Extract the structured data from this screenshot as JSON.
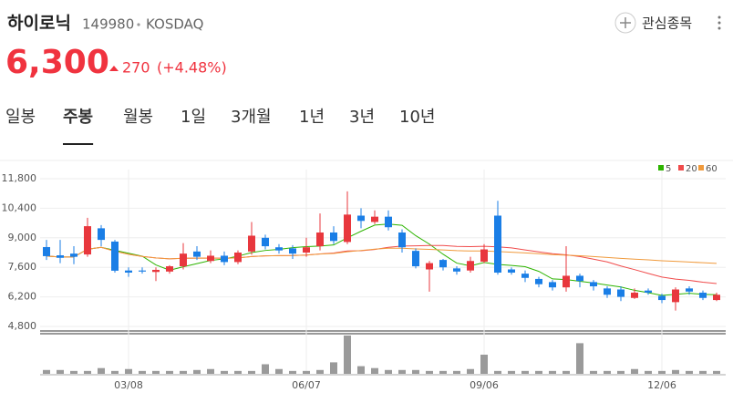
{
  "header": {
    "name": "하이로닉",
    "code": "149980",
    "market": "KOSDAQ",
    "watch": "관심종목",
    "price": "6,300",
    "change": "270",
    "change_pct": "(+4.48%)"
  },
  "tabs": [
    "일봉",
    "주봉",
    "월봉",
    "1일",
    "3개월",
    "1년",
    "3년",
    "10년"
  ],
  "active_tab": 1,
  "chart_data": {
    "type": "candlestick",
    "categories": [
      null,
      null,
      null,
      null,
      null,
      null,
      "03/08",
      null,
      null,
      null,
      null,
      null,
      null,
      null,
      null,
      null,
      null,
      null,
      null,
      "06/07",
      null,
      null,
      null,
      null,
      null,
      null,
      null,
      null,
      null,
      null,
      null,
      null,
      "09/06",
      null,
      null,
      null,
      null,
      null,
      null,
      null,
      null,
      null,
      null,
      null,
      null,
      "12/06",
      null,
      null,
      null,
      null
    ],
    "open": [
      8560,
      8170,
      8250,
      8210,
      9450,
      8820,
      7450,
      7450,
      7380,
      7400,
      7650,
      8350,
      7900,
      8150,
      7850,
      8350,
      9000,
      8550,
      8500,
      8300,
      8600,
      9250,
      8800,
      10050,
      9750,
      10000,
      9250,
      8380,
      7500,
      7950,
      7550,
      7450,
      7870,
      10050,
      7500,
      7300,
      7050,
      6900,
      6650,
      7200,
      6900,
      6600,
      6550,
      6150,
      6500,
      6250,
      5950,
      6600,
      6400,
      6050
    ],
    "high": [
      8900,
      8900,
      8600,
      9950,
      9600,
      8900,
      7600,
      7600,
      7600,
      7700,
      8750,
      8600,
      8400,
      8350,
      8400,
      9750,
      9150,
      8700,
      8650,
      9000,
      10150,
      9550,
      11200,
      10400,
      10300,
      10300,
      9400,
      8500,
      7900,
      8000,
      7650,
      8100,
      8700,
      10750,
      7600,
      7450,
      7150,
      7000,
      8600,
      7300,
      7000,
      6700,
      6700,
      6600,
      6600,
      6350,
      6650,
      6700,
      6500,
      6400
    ],
    "low": [
      7950,
      7800,
      7750,
      8100,
      8600,
      7350,
      7150,
      7300,
      6950,
      7300,
      7500,
      7950,
      7800,
      7700,
      7750,
      8200,
      8450,
      8250,
      8000,
      8100,
      8400,
      8700,
      8700,
      9450,
      9650,
      9350,
      8300,
      7550,
      6450,
      7450,
      7250,
      7350,
      7800,
      7250,
      7250,
      6900,
      6650,
      6500,
      6450,
      6650,
      6500,
      6150,
      6000,
      6100,
      6300,
      5900,
      5550,
      6300,
      6050,
      6000
    ],
    "close": [
      8130,
      8050,
      8100,
      9550,
      8900,
      7440,
      7350,
      7400,
      7480,
      7650,
      8250,
      8100,
      8150,
      7850,
      8300,
      9100,
      8600,
      8400,
      8250,
      8550,
      9250,
      8850,
      10100,
      9800,
      10000,
      9500,
      8550,
      7650,
      7800,
      7600,
      7400,
      7900,
      8450,
      7350,
      7350,
      7100,
      6800,
      6650,
      7200,
      6950,
      6700,
      6300,
      6200,
      6400,
      6400,
      6050,
      6550,
      6450,
      6150,
      6300
    ],
    "volume": [
      4,
      4,
      3,
      3,
      6,
      3,
      5,
      3,
      3,
      3,
      3,
      4,
      5,
      3,
      3,
      3,
      10,
      5,
      3,
      3,
      4,
      12,
      40,
      8,
      6,
      4,
      4,
      4,
      3,
      3,
      3,
      5,
      20,
      3,
      3,
      3,
      3,
      3,
      3,
      32,
      3,
      3,
      3,
      5,
      3,
      3,
      4,
      3,
      3,
      3
    ],
    "up_color": "#e8373d",
    "down_color": "#1a7ee6",
    "ylim": [
      4800,
      11800
    ],
    "yticks": [
      {
        "value": 4800,
        "label": "4,800"
      },
      {
        "value": 6200,
        "label": "6,200"
      },
      {
        "value": 7600,
        "label": "7,600"
      },
      {
        "value": 9000,
        "label": "9,000"
      },
      {
        "value": 10400,
        "label": "10,400"
      },
      {
        "value": 11800,
        "label": "11,800"
      }
    ],
    "grid": true,
    "moving_averages": [
      {
        "name": "5",
        "color": "#2db400"
      },
      {
        "name": "20",
        "color": "#f04b4b"
      },
      {
        "name": "60",
        "color": "#f09a3c"
      }
    ]
  }
}
